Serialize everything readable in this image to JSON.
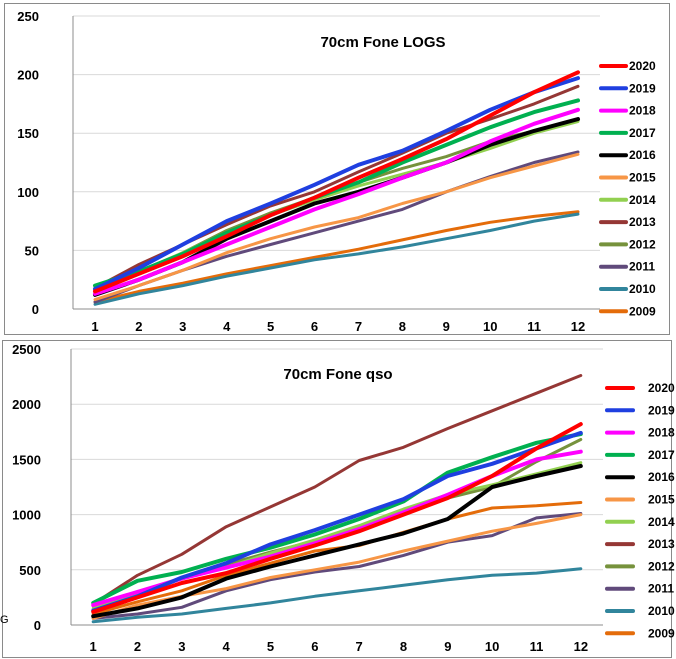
{
  "sheet_edge_text": "G",
  "chart_data": [
    {
      "type": "line",
      "title": "70cm Fone LOGS",
      "xlabel": "",
      "ylabel": "",
      "categories": [
        "1",
        "2",
        "3",
        "4",
        "5",
        "6",
        "7",
        "8",
        "9",
        "10",
        "11",
        "12"
      ],
      "ylim": [
        0,
        250
      ],
      "yticks": [
        0,
        50,
        100,
        150,
        200,
        250
      ],
      "grid": true,
      "legend": "right",
      "series": [
        {
          "name": "2020",
          "color": "#ff0000",
          "values": [
            15,
            30,
            45,
            62,
            80,
            95,
            112,
            128,
            145,
            165,
            185,
            202
          ]
        },
        {
          "name": "2019",
          "color": "#1f3fe0",
          "values": [
            17,
            35,
            55,
            75,
            90,
            106,
            123,
            135,
            152,
            170,
            185,
            197
          ]
        },
        {
          "name": "2018",
          "color": "#ff00ff",
          "values": [
            13,
            25,
            40,
            55,
            70,
            85,
            98,
            112,
            125,
            143,
            158,
            170
          ]
        },
        {
          "name": "2017",
          "color": "#00b050",
          "values": [
            20,
            32,
            47,
            65,
            80,
            95,
            108,
            125,
            140,
            155,
            168,
            178
          ]
        },
        {
          "name": "2016",
          "color": "#000000",
          "values": [
            12,
            25,
            40,
            60,
            75,
            90,
            100,
            112,
            125,
            140,
            152,
            162
          ]
        },
        {
          "name": "2015",
          "color": "#f79646",
          "values": [
            8,
            20,
            33,
            48,
            60,
            70,
            78,
            90,
            100,
            112,
            122,
            132
          ]
        },
        {
          "name": "2014",
          "color": "#92d050",
          "values": [
            20,
            32,
            48,
            65,
            80,
            93,
            105,
            115,
            125,
            137,
            150,
            160
          ]
        },
        {
          "name": "2013",
          "color": "#953735",
          "values": [
            18,
            38,
            55,
            72,
            88,
            100,
            117,
            133,
            150,
            162,
            175,
            190
          ]
        },
        {
          "name": "2012",
          "color": "#76923c",
          "values": [
            16,
            30,
            48,
            67,
            82,
            95,
            108,
            120,
            130,
            143,
            152,
            162
          ]
        },
        {
          "name": "2011",
          "color": "#604a7b",
          "values": [
            6,
            20,
            33,
            45,
            55,
            65,
            75,
            85,
            100,
            113,
            125,
            134
          ]
        },
        {
          "name": "2010",
          "color": "#31859c",
          "values": [
            4,
            13,
            20,
            28,
            35,
            42,
            47,
            53,
            60,
            67,
            75,
            81
          ]
        },
        {
          "name": "2009",
          "color": "#e46c0a",
          "values": [
            6,
            15,
            22,
            30,
            37,
            44,
            51,
            59,
            67,
            74,
            79,
            83
          ]
        }
      ]
    },
    {
      "type": "line",
      "title": "70cm Fone  qso",
      "xlabel": "",
      "ylabel": "",
      "categories": [
        "1",
        "2",
        "3",
        "4",
        "5",
        "6",
        "7",
        "8",
        "9",
        "10",
        "11",
        "12"
      ],
      "ylim": [
        0,
        2500
      ],
      "yticks": [
        0,
        500,
        1000,
        1500,
        2000,
        2500
      ],
      "grid": true,
      "legend": "right",
      "series": [
        {
          "name": "2020",
          "color": "#ff0000",
          "values": [
            120,
            250,
            380,
            470,
            600,
            720,
            850,
            1000,
            1150,
            1350,
            1600,
            1820
          ]
        },
        {
          "name": "2019",
          "color": "#1f3fe0",
          "values": [
            130,
            260,
            430,
            560,
            730,
            860,
            1000,
            1140,
            1350,
            1460,
            1600,
            1740
          ]
        },
        {
          "name": "2018",
          "color": "#ff00ff",
          "values": [
            180,
            300,
            420,
            520,
            620,
            740,
            870,
            1020,
            1180,
            1350,
            1500,
            1570
          ]
        },
        {
          "name": "2017",
          "color": "#00b050",
          "values": [
            200,
            400,
            480,
            600,
            700,
            820,
            960,
            1120,
            1380,
            1520,
            1650,
            1730
          ]
        },
        {
          "name": "2016",
          "color": "#000000",
          "values": [
            80,
            150,
            250,
            420,
            530,
            630,
            730,
            830,
            960,
            1250,
            1350,
            1440
          ]
        },
        {
          "name": "2015",
          "color": "#f79646",
          "values": [
            60,
            180,
            260,
            330,
            430,
            500,
            570,
            670,
            760,
            850,
            920,
            1000
          ]
        },
        {
          "name": "2014",
          "color": "#92d050",
          "values": [
            150,
            280,
            420,
            520,
            650,
            770,
            900,
            1050,
            1180,
            1270,
            1370,
            1470
          ]
        },
        {
          "name": "2013",
          "color": "#953735",
          "values": [
            190,
            450,
            640,
            890,
            1070,
            1250,
            1490,
            1610,
            1780,
            1940,
            2100,
            2260
          ]
        },
        {
          "name": "2012",
          "color": "#76923c",
          "values": [
            170,
            270,
            420,
            550,
            660,
            760,
            890,
            1020,
            1150,
            1250,
            1480,
            1680
          ]
        },
        {
          "name": "2011",
          "color": "#604a7b",
          "values": [
            60,
            100,
            160,
            310,
            410,
            480,
            530,
            630,
            750,
            810,
            970,
            1010
          ]
        },
        {
          "name": "2010",
          "color": "#31859c",
          "values": [
            30,
            70,
            100,
            150,
            200,
            260,
            310,
            360,
            410,
            450,
            470,
            510
          ]
        },
        {
          "name": "2009",
          "color": "#e46c0a",
          "values": [
            100,
            210,
            310,
            450,
            560,
            670,
            720,
            840,
            960,
            1060,
            1080,
            1110
          ]
        }
      ]
    }
  ]
}
